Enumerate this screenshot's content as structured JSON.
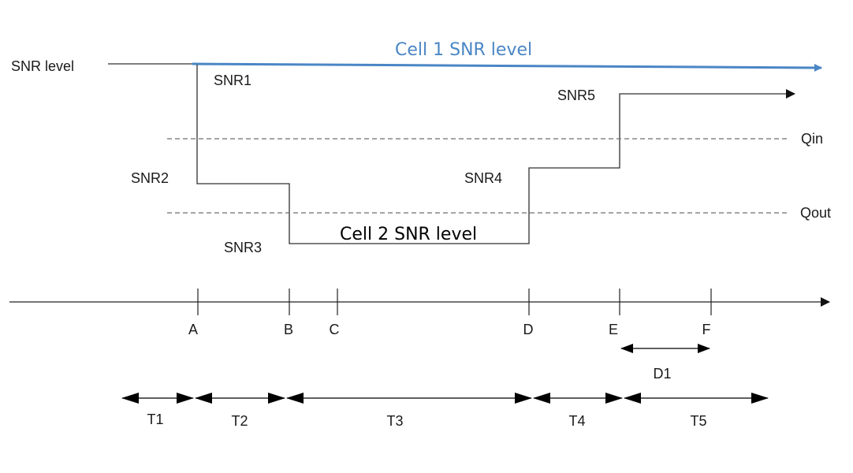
{
  "colors": {
    "cell1": "#4a86c5",
    "line": "#303030",
    "dash": "#6e6e6e"
  },
  "labels": {
    "snr_level": "SNR level",
    "cell1": "Cell 1 SNR level",
    "cell2": "Cell 2 SNR level",
    "snr1": "SNR1",
    "snr2": "SNR2",
    "snr3": "SNR3",
    "snr4": "SNR4",
    "snr5": "SNR5",
    "qin": "Qin",
    "qout": "Qout"
  },
  "timeline": {
    "points": [
      "A",
      "B",
      "C",
      "D",
      "E",
      "F"
    ],
    "durations": [
      "T1",
      "T2",
      "T3",
      "T4",
      "T5"
    ],
    "d1": "D1"
  }
}
